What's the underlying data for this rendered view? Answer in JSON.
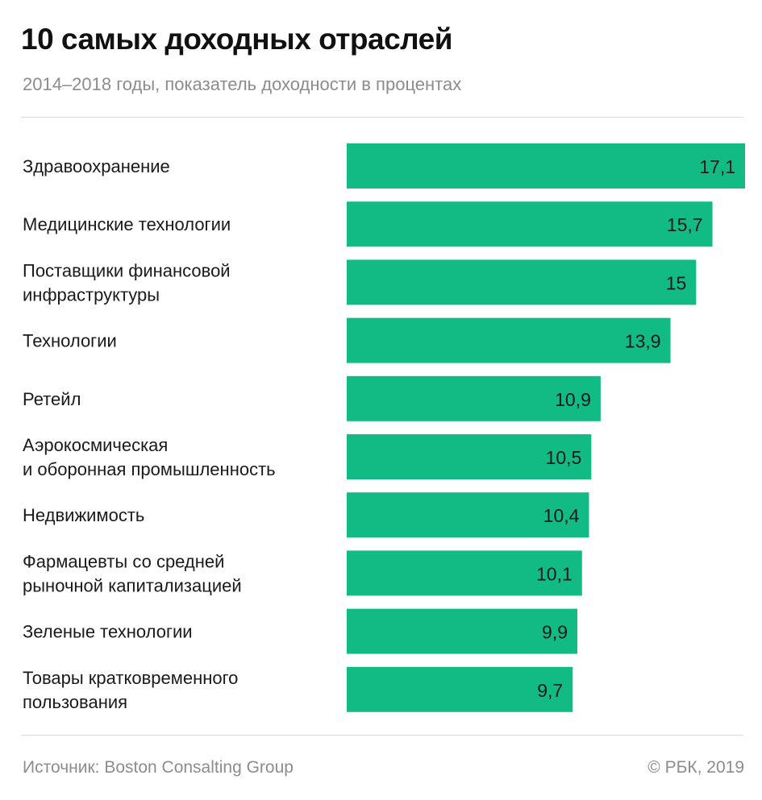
{
  "chart_data": {
    "type": "bar",
    "orientation": "horizontal",
    "title": "10 самых доходных отраслей",
    "subtitle": "2014–2018 годы, показатель доходности в процентах",
    "categories": [
      [
        "Здравоохранение"
      ],
      [
        "Медицинские технологии"
      ],
      [
        "Поставщики финансовой",
        "инфраструктуры"
      ],
      [
        "Технологии"
      ],
      [
        "Ретейл"
      ],
      [
        "Аэрокосмическая",
        "и оборонная промышленность"
      ],
      [
        "Недвижимость"
      ],
      [
        "Фармацевты со средней",
        "рыночной капитализацией"
      ],
      [
        "Зеленые технологии"
      ],
      [
        "Товары кратковременного",
        "пользования"
      ]
    ],
    "values": [
      17.1,
      15.7,
      15,
      13.9,
      10.9,
      10.5,
      10.4,
      10.1,
      9.9,
      9.7
    ],
    "value_labels": [
      "17,1",
      "15,7",
      "15",
      "13,9",
      "10,9",
      "10,5",
      "10,4",
      "10,1",
      "9,9",
      "9,7"
    ],
    "xlabel": "",
    "ylabel": "",
    "grid": false,
    "bar_color": "#13bb84"
  },
  "footer": {
    "source": "Источник: Boston Consalting Group",
    "credit": "© РБК, 2019"
  }
}
